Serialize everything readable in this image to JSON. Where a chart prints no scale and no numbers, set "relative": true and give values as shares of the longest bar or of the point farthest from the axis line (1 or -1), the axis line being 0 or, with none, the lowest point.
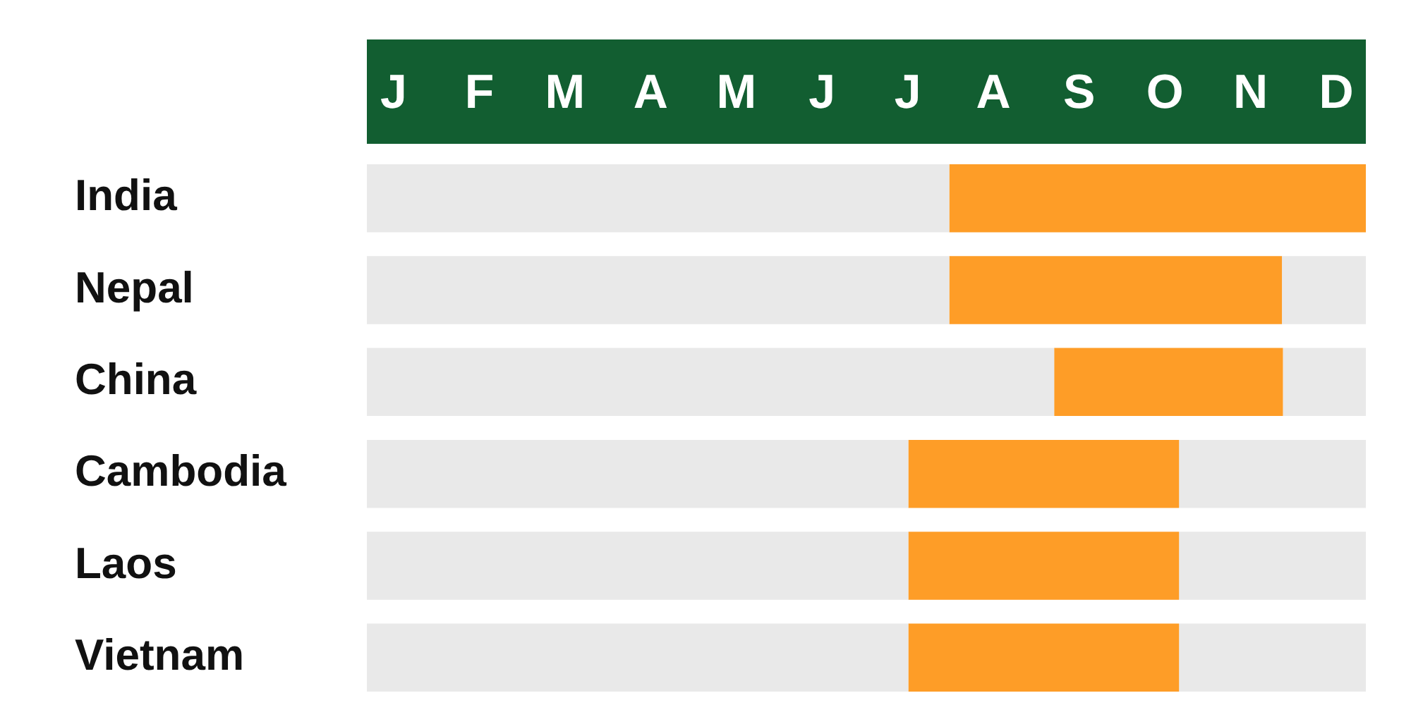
{
  "chart_data": {
    "type": "bar",
    "orientation": "horizontal",
    "stacked": true,
    "relative": true,
    "categories": [
      "India",
      "Nepal",
      "China",
      "Cambodia",
      "Laos",
      "Vietnam"
    ],
    "series": [
      {
        "color": "#e9e9e9",
        "values": [
          0.583,
          0.583,
          0.688,
          0.542,
          0.542,
          0.542
        ]
      },
      {
        "color": "#fe9d27",
        "values": [
          0.417,
          0.333,
          0.229,
          0.271,
          0.271,
          0.271
        ]
      },
      {
        "color": "#e9e9e9",
        "values": [
          0,
          0.084,
          0.083,
          0.187,
          0.187,
          0.187
        ]
      }
    ],
    "annotations": [
      "J",
      "F",
      "M",
      "A",
      "M",
      "J",
      "J",
      "A",
      "S",
      "O",
      "N",
      "D"
    ],
    "grid": false,
    "legend": false
  }
}
